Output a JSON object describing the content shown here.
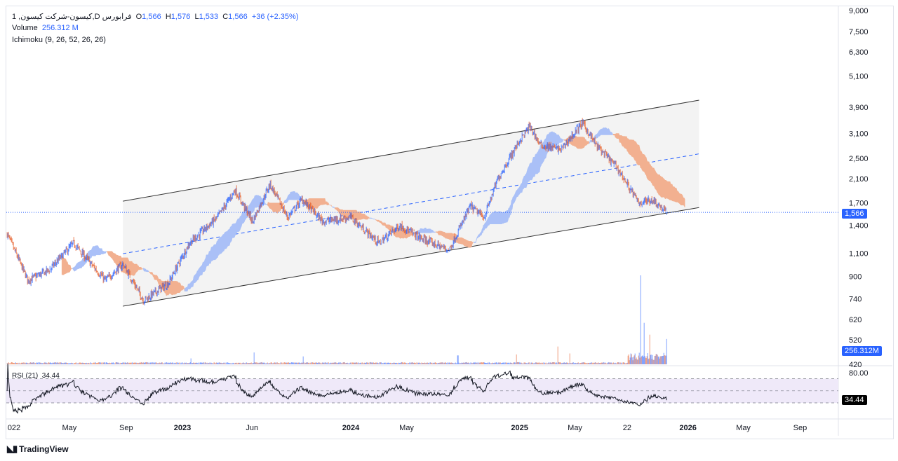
{
  "legend": {
    "symbol": "1 ,کیسون-شرکت کیسون,D فرابورس",
    "open_label": "O",
    "open": "1,566",
    "high_label": "H",
    "high": "1,576",
    "low_label": "L",
    "low": "1,533",
    "close_label": "C",
    "close": "1,566",
    "change": "+36 (+2.35%)",
    "volume_label": "Volume",
    "volume_value": "256.312 M",
    "ichimoku_label": "Ichimoku (9, 26, 52, 26, 26)",
    "rsi_label": "RSI (21)",
    "rsi_value": "34.44"
  },
  "price_axis": {
    "scale": "log",
    "ticks": [
      "9,000",
      "7,500",
      "6,300",
      "5,100",
      "3,900",
      "3,100",
      "2,500",
      "2,100",
      "1,700",
      "1,400",
      "1,100",
      "900",
      "740",
      "620",
      "520",
      "420"
    ],
    "last_price": "1,566",
    "last_volume": "256.312M"
  },
  "rsi_axis": {
    "ticks": [
      "80.00"
    ],
    "last": "34.44",
    "levels": [
      70,
      50,
      30
    ]
  },
  "time_axis": {
    "ticks": [
      {
        "label": "022",
        "date": "2022-01-01"
      },
      {
        "label": "May",
        "date": "2022-05-01"
      },
      {
        "label": "Sep",
        "date": "2022-09-01"
      },
      {
        "label": "2023",
        "date": "2023-01-01"
      },
      {
        "label": "Jun",
        "date": "2023-06-01"
      },
      {
        "label": "2024",
        "date": "2024-01-01"
      },
      {
        "label": "May",
        "date": "2024-05-01"
      },
      {
        "label": "2025",
        "date": "2025-01-01"
      },
      {
        "label": "May",
        "date": "2025-05-01"
      },
      {
        "label": "22",
        "date": "2025-08-22"
      },
      {
        "label": "2026",
        "date": "2026-01-01"
      },
      {
        "label": "May",
        "date": "2026-05-01"
      },
      {
        "label": "Sep",
        "date": "2026-09-01"
      }
    ]
  },
  "colors": {
    "up": "#2962ff",
    "down": "#e65f2b",
    "cloud_bull": "#a9c0f7",
    "cloud_bear": "#f2b08f",
    "channel_fill": "#f3f3f3",
    "rsi_band": "#efe9f9",
    "price_line": "#2962ff"
  },
  "chart_data": {
    "type": "candlestick",
    "price_path": [
      [
        "2021-12-17",
        1300
      ],
      [
        "2022-01-31",
        870
      ],
      [
        "2022-03-18",
        950
      ],
      [
        "2022-05-10",
        1200
      ],
      [
        "2022-06-17",
        1000
      ],
      [
        "2022-07-18",
        870
      ],
      [
        "2022-08-25",
        1000
      ],
      [
        "2022-10-09",
        730
      ],
      [
        "2022-12-02",
        850
      ],
      [
        "2023-01-16",
        1200
      ],
      [
        "2023-03-18",
        1500
      ],
      [
        "2023-04-25",
        1900
      ],
      [
        "2023-06-02",
        1450
      ],
      [
        "2023-07-10",
        2000
      ],
      [
        "2023-08-17",
        1500
      ],
      [
        "2023-09-17",
        1750
      ],
      [
        "2023-11-01",
        1450
      ],
      [
        "2024-01-01",
        1500
      ],
      [
        "2024-03-02",
        1200
      ],
      [
        "2024-04-16",
        1400
      ],
      [
        "2024-06-01",
        1250
      ],
      [
        "2024-08-01",
        1130
      ],
      [
        "2024-09-16",
        1650
      ],
      [
        "2024-10-16",
        1500
      ],
      [
        "2024-11-15",
        2100
      ],
      [
        "2024-12-31",
        2900
      ],
      [
        "2025-01-23",
        3300
      ],
      [
        "2025-02-15",
        2800
      ],
      [
        "2025-04-01",
        2700
      ],
      [
        "2025-05-17",
        3400
      ],
      [
        "2025-06-16",
        2800
      ],
      [
        "2025-08-01",
        2300
      ],
      [
        "2025-09-16",
        1700
      ],
      [
        "2025-10-16",
        1750
      ],
      [
        "2025-11-16",
        1566
      ]
    ],
    "volume_spikes_m": [
      [
        "2023-01-20",
        60
      ],
      [
        "2023-06-05",
        120
      ],
      [
        "2023-09-20",
        80
      ],
      [
        "2024-08-20",
        90
      ],
      [
        "2024-12-25",
        100
      ],
      [
        "2025-03-25",
        180
      ],
      [
        "2025-04-20",
        110
      ],
      [
        "2025-09-20",
        900
      ],
      [
        "2025-09-28",
        420
      ],
      [
        "2025-10-10",
        300
      ],
      [
        "2025-11-16",
        256.312
      ]
    ],
    "channel": {
      "start_date": "2022-08-25",
      "end_date": "2026-01-25",
      "upper": [
        1726,
        4140
      ],
      "lower": [
        695,
        1633
      ]
    },
    "ichimoku": {
      "tenkan": 9,
      "kijun": 26,
      "senkou_b": 52,
      "displacement": 26
    },
    "rsi_period": 21
  }
}
